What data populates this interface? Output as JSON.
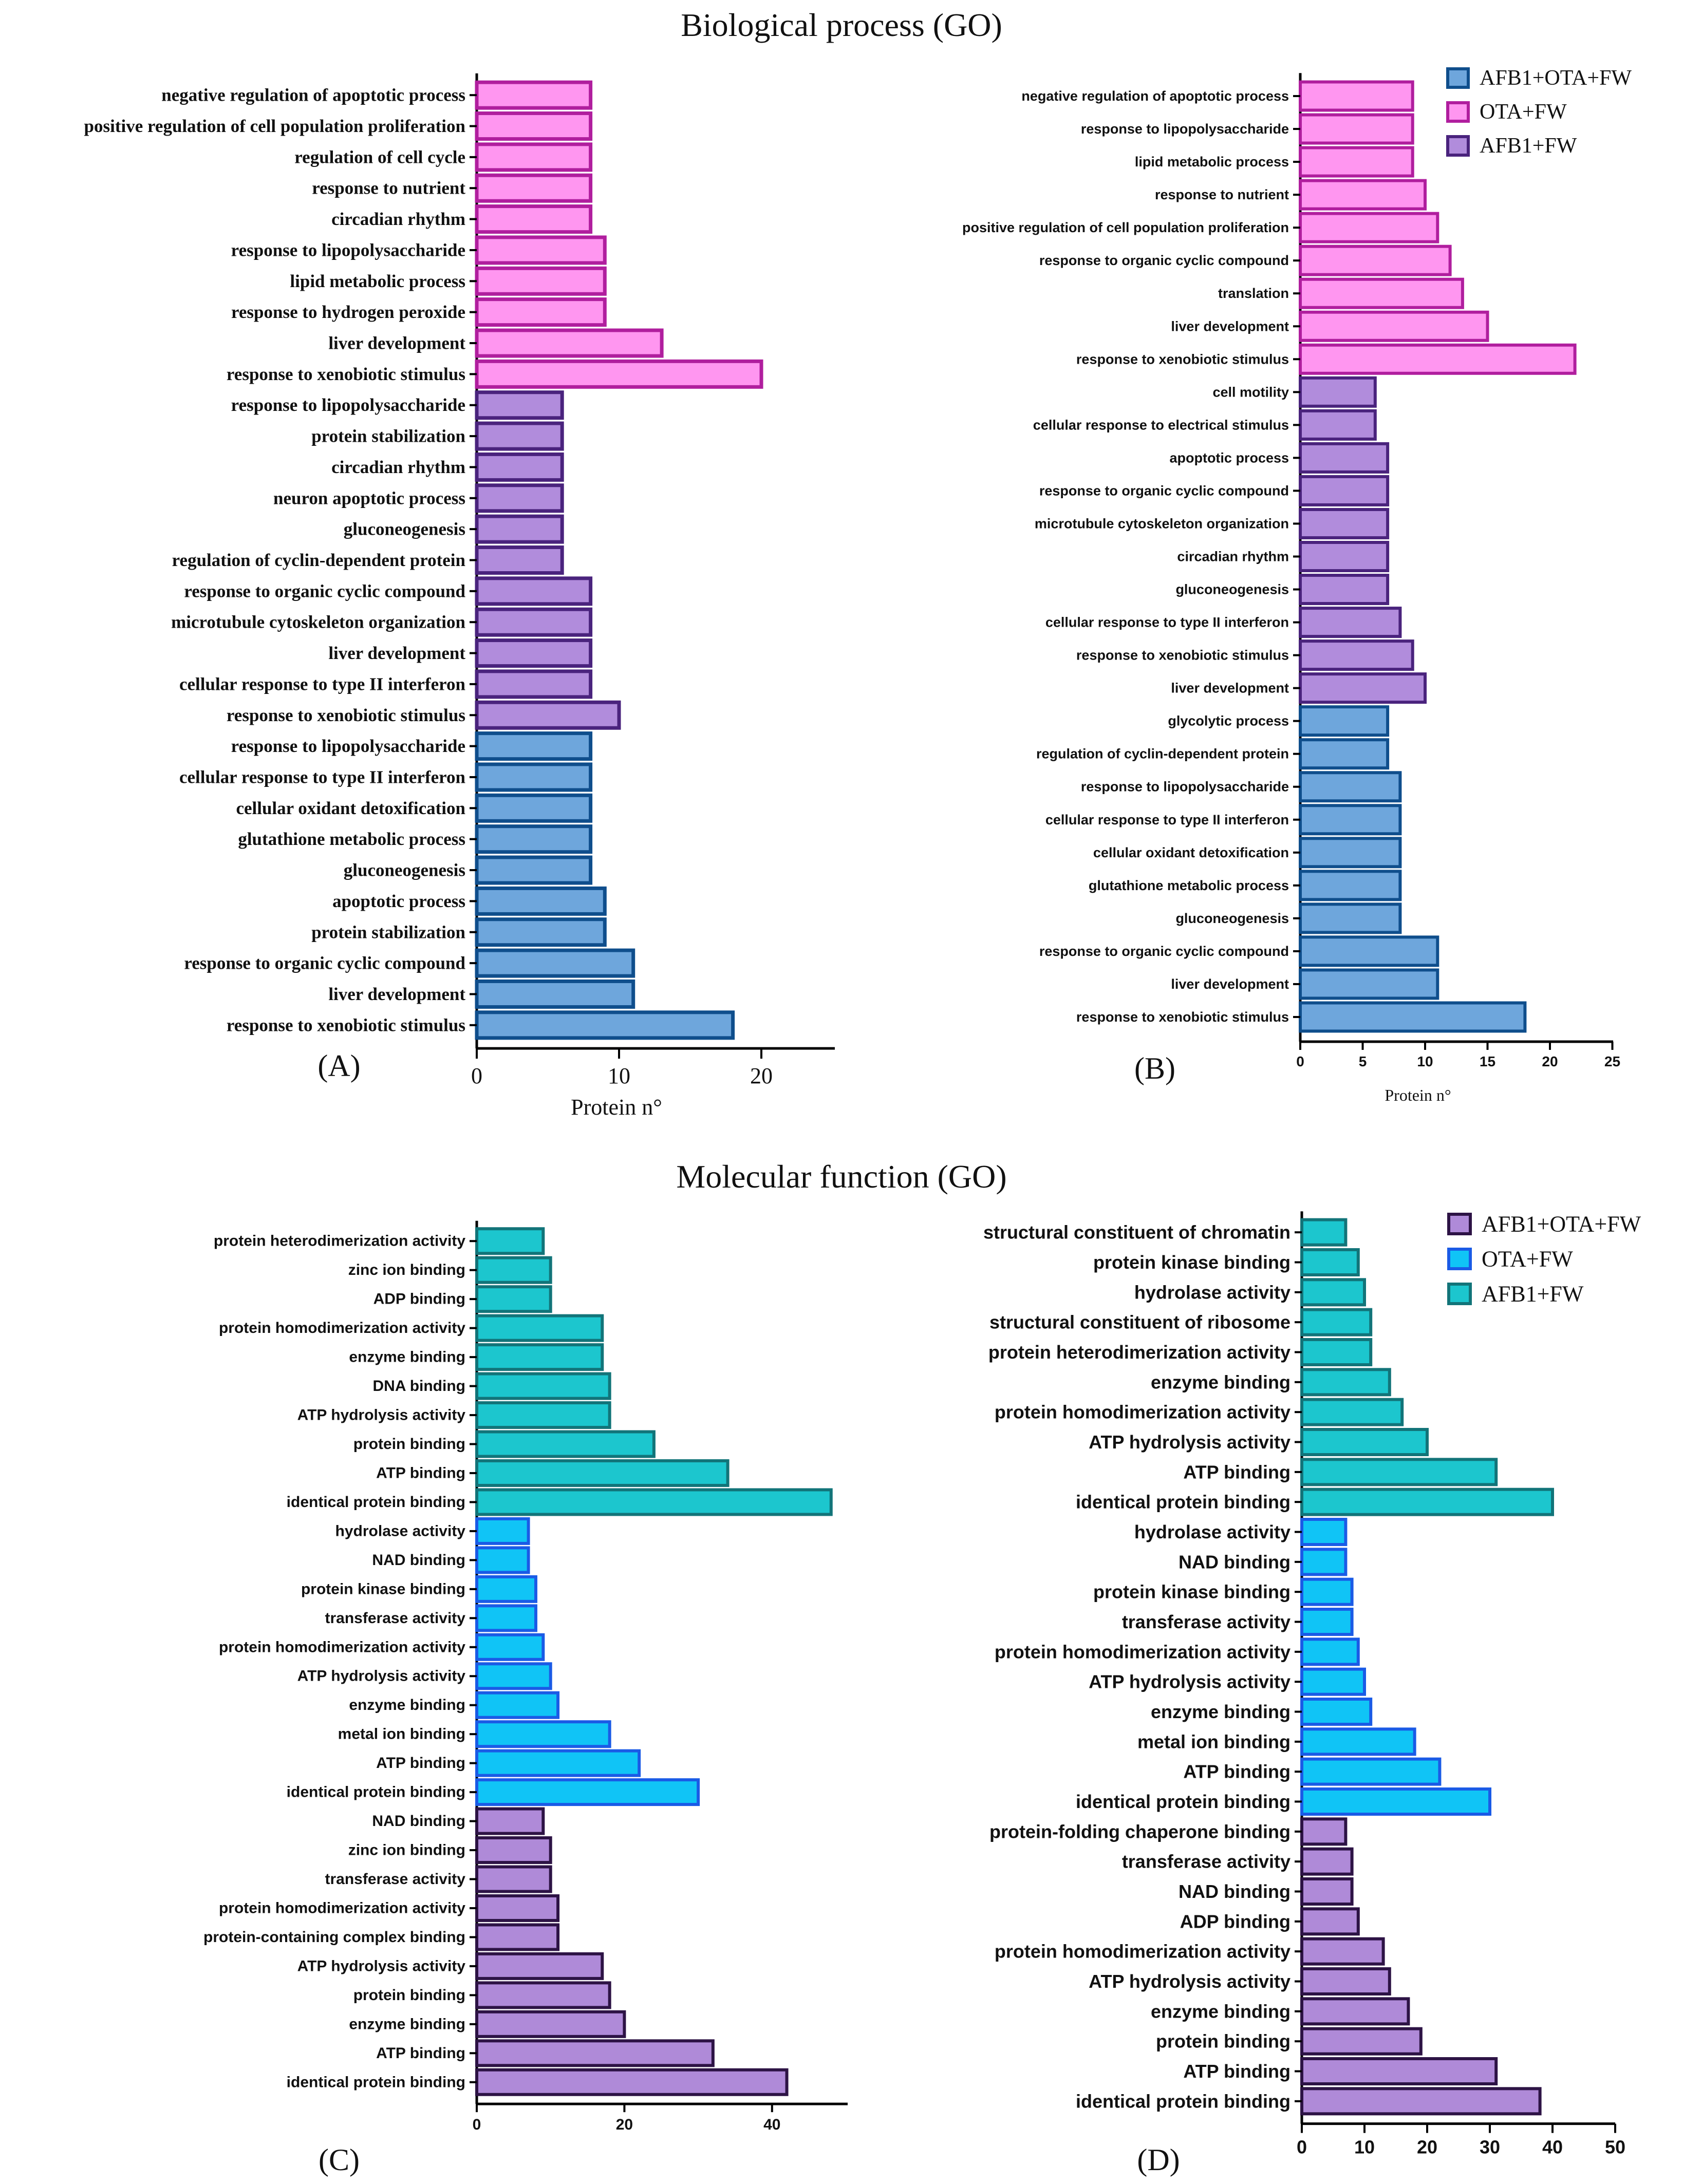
{
  "titles": {
    "biological": "Biological process (GO)",
    "molecular": "Molecular function (GO)"
  },
  "colors": {
    "pink": "#FF96F0",
    "pink_edge": "#B01E9E",
    "purple": "#B18CDC",
    "purple_edge": "#4A237D",
    "blue": "#6EA6DC",
    "blue_edge": "#0F4E8C",
    "teal": "#1CC6CE",
    "teal_edge": "#127479",
    "cyan": "#10C4F6",
    "cyan_edge": "#1A5BE6",
    "mfpurple": "#AF8AD8",
    "mfpurple_edge": "#2D1345"
  },
  "chart_data": [
    {
      "id": "A",
      "type": "bar",
      "orientation": "horizontal",
      "panel_label": "(A)",
      "xlabel": "Protein n°",
      "xlim": [
        0,
        25
      ],
      "ticks": [
        0,
        10,
        20
      ],
      "series": [
        {
          "name": "OTA+FW",
          "color": "pink",
          "categories": [
            "negative regulation of apoptotic process",
            "positive regulation of cell population proliferation",
            "regulation of cell cycle",
            "response to nutrient",
            "circadian rhythm",
            "response to lipopolysaccharide",
            "lipid metabolic process",
            "response to hydrogen peroxide",
            "liver development",
            "response to xenobiotic stimulus"
          ],
          "values": [
            8,
            8,
            8,
            8,
            8,
            9,
            9,
            9,
            13,
            20
          ]
        },
        {
          "name": "AFB1+FW",
          "color": "purple",
          "categories": [
            "response to lipopolysaccharide",
            "protein stabilization",
            "circadian rhythm",
            "neuron apoptotic process",
            "gluconeogenesis",
            "regulation of cyclin-dependent protein",
            "response to organic cyclic compound",
            "microtubule cytoskeleton organization",
            "liver development",
            "cellular response to type II interferon",
            "response to xenobiotic stimulus"
          ],
          "values": [
            6,
            6,
            6,
            6,
            6,
            6,
            8,
            8,
            8,
            8,
            10
          ]
        },
        {
          "name": "AFB1+OTA+FW",
          "color": "blue",
          "categories": [
            "response to lipopolysaccharide",
            "cellular response to type II interferon",
            "cellular oxidant detoxification",
            "glutathione metabolic process",
            "gluconeogenesis",
            "apoptotic process",
            "protein stabilization",
            "response to organic cyclic compound",
            "liver development",
            "response to xenobiotic stimulus"
          ],
          "values": [
            8,
            8,
            8,
            8,
            8,
            9,
            9,
            11,
            11,
            18
          ]
        }
      ]
    },
    {
      "id": "B",
      "type": "bar",
      "orientation": "horizontal",
      "panel_label": "(B)",
      "xlabel": "Protein n°",
      "xlim": [
        0,
        25
      ],
      "ticks": [
        0,
        5,
        10,
        15,
        20,
        25
      ],
      "legend": [
        {
          "label": "AFB1+OTA+FW",
          "color": "blue"
        },
        {
          "label": "OTA+FW",
          "color": "pink"
        },
        {
          "label": "AFB1+FW",
          "color": "purple"
        }
      ],
      "series": [
        {
          "name": "OTA+FW",
          "color": "pink",
          "categories": [
            "negative regulation of apoptotic process",
            "response to lipopolysaccharide",
            "lipid metabolic process",
            "response to nutrient",
            "positive regulation of cell population proliferation",
            "response to organic cyclic compound",
            "translation",
            "liver development",
            "response to xenobiotic stimulus"
          ],
          "values": [
            9,
            9,
            9,
            10,
            11,
            12,
            13,
            15,
            22
          ]
        },
        {
          "name": "AFB1+FW",
          "color": "purple",
          "categories": [
            "cell motility",
            "cellular response to electrical stimulus",
            "apoptotic process",
            "response to organic cyclic compound",
            "microtubule cytoskeleton organization",
            "circadian rhythm",
            "gluconeogenesis",
            "cellular response to type II interferon",
            "response to xenobiotic stimulus",
            "liver development"
          ],
          "values": [
            6,
            6,
            7,
            7,
            7,
            7,
            7,
            8,
            9,
            10
          ]
        },
        {
          "name": "AFB1+OTA+FW",
          "color": "blue",
          "categories": [
            "glycolytic process",
            "regulation of cyclin-dependent protein",
            "response to lipopolysaccharide",
            "cellular response to type II interferon",
            "cellular oxidant detoxification",
            "glutathione metabolic process",
            "gluconeogenesis",
            "response to organic cyclic compound",
            "liver development",
            "response to xenobiotic stimulus"
          ],
          "values": [
            7,
            7,
            8,
            8,
            8,
            8,
            8,
            11,
            11,
            18
          ]
        }
      ]
    },
    {
      "id": "C",
      "type": "bar",
      "orientation": "horizontal",
      "panel_label": "(C)",
      "xlabel": "",
      "xlim": [
        0,
        50
      ],
      "ticks": [
        0,
        20,
        40
      ],
      "series": [
        {
          "name": "AFB1+FW",
          "color": "teal",
          "categories": [
            "protein heterodimerization activity",
            "zinc ion binding",
            "ADP binding",
            "protein homodimerization activity",
            "enzyme binding",
            "DNA binding",
            "ATP hydrolysis activity",
            "protein binding",
            "ATP binding",
            "identical protein binding"
          ],
          "values": [
            9,
            10,
            10,
            17,
            17,
            18,
            18,
            24,
            34,
            48
          ]
        },
        {
          "name": "OTA+FW",
          "color": "cyan",
          "categories": [
            "hydrolase activity",
            "NAD binding",
            "protein kinase binding",
            "transferase activity",
            "protein homodimerization activity",
            "ATP hydrolysis activity",
            "enzyme binding",
            "metal ion binding",
            "ATP binding",
            "identical protein binding"
          ],
          "values": [
            7,
            7,
            8,
            8,
            9,
            10,
            11,
            18,
            22,
            30
          ]
        },
        {
          "name": "AFB1+OTA+FW",
          "color": "mfpurple",
          "categories": [
            "NAD binding",
            "zinc ion binding",
            "transferase activity",
            "protein homodimerization activity",
            "protein-containing complex binding",
            "ATP hydrolysis activity",
            "protein binding",
            "enzyme binding",
            "ATP binding",
            "identical protein binding"
          ],
          "values": [
            9,
            10,
            10,
            11,
            11,
            17,
            18,
            20,
            32,
            42
          ]
        }
      ]
    },
    {
      "id": "D",
      "type": "bar",
      "orientation": "horizontal",
      "panel_label": "(D)",
      "xlabel": "",
      "xlim": [
        0,
        50
      ],
      "ticks": [
        0,
        10,
        20,
        30,
        40,
        50
      ],
      "legend": [
        {
          "label": "AFB1+OTA+FW",
          "color": "mfpurple"
        },
        {
          "label": "OTA+FW",
          "color": "cyan"
        },
        {
          "label": "AFB1+FW",
          "color": "teal"
        }
      ],
      "series": [
        {
          "name": "AFB1+FW",
          "color": "teal",
          "categories": [
            "structural constituent of chromatin",
            "protein kinase binding",
            "hydrolase activity",
            "structural constituent of ribosome",
            "protein heterodimerization activity",
            "enzyme binding",
            "protein homodimerization activity",
            "ATP hydrolysis activity",
            "ATP binding",
            "identical protein binding"
          ],
          "values": [
            7,
            9,
            10,
            11,
            11,
            14,
            16,
            20,
            31,
            40
          ]
        },
        {
          "name": "OTA+FW",
          "color": "cyan",
          "categories": [
            "hydrolase activity",
            "NAD binding",
            "protein kinase binding",
            "transferase activity",
            "protein homodimerization activity",
            "ATP hydrolysis activity",
            "enzyme binding",
            "metal ion binding",
            "ATP binding",
            "identical protein binding"
          ],
          "values": [
            7,
            7,
            8,
            8,
            9,
            10,
            11,
            18,
            22,
            30
          ]
        },
        {
          "name": "AFB1+OTA+FW",
          "color": "mfpurple",
          "categories": [
            "protein-folding chaperone binding",
            "transferase activity",
            "NAD binding",
            "ADP binding",
            "protein homodimerization activity",
            "ATP hydrolysis activity",
            "enzyme binding",
            "protein binding",
            "ATP binding",
            "identical protein binding"
          ],
          "values": [
            7,
            8,
            8,
            9,
            13,
            14,
            17,
            19,
            31,
            38
          ]
        }
      ]
    }
  ]
}
